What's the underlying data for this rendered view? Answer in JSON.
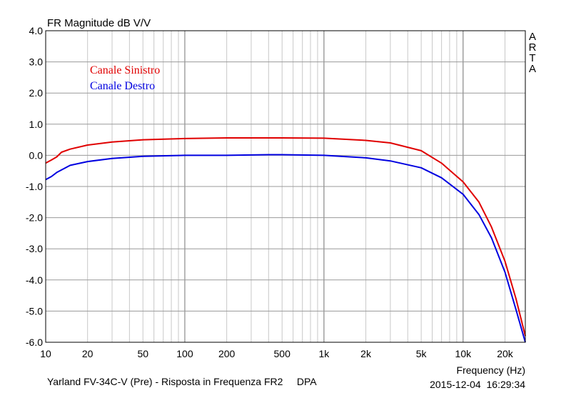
{
  "chart_data": {
    "type": "line",
    "title": "FR Magnitude dB V/V",
    "xlabel": "Frequency (Hz)",
    "x_scale": "log",
    "xlim": [
      10,
      28000
    ],
    "ylim": [
      -6,
      4
    ],
    "grid": true,
    "legend_position": "top-left",
    "brand": [
      "A",
      "R",
      "T",
      "A"
    ],
    "footer_left": "Yarland FV-34C-V (Pre) - Risposta in Frequenza FR2     DPA",
    "footer_right": "2015-12-04  16:29:34",
    "x_ticks": [
      {
        "value": 10,
        "label": "10"
      },
      {
        "value": 20,
        "label": "20"
      },
      {
        "value": 50,
        "label": "50"
      },
      {
        "value": 100,
        "label": "100"
      },
      {
        "value": 200,
        "label": "200"
      },
      {
        "value": 500,
        "label": "500"
      },
      {
        "value": 1000,
        "label": "1k"
      },
      {
        "value": 2000,
        "label": "2k"
      },
      {
        "value": 5000,
        "label": "5k"
      },
      {
        "value": 10000,
        "label": "10k"
      },
      {
        "value": 20000,
        "label": "20k"
      }
    ],
    "y_ticks": [
      {
        "value": 4,
        "label": "4.0"
      },
      {
        "value": 3,
        "label": "3.0"
      },
      {
        "value": 2,
        "label": "2.0"
      },
      {
        "value": 1,
        "label": "1.0"
      },
      {
        "value": 0,
        "label": "0.0"
      },
      {
        "value": -1,
        "label": "-1.0"
      },
      {
        "value": -2,
        "label": "-2.0"
      },
      {
        "value": -3,
        "label": "-3.0"
      },
      {
        "value": -4,
        "label": "-4.0"
      },
      {
        "value": -5,
        "label": "-5.0"
      },
      {
        "value": -6,
        "label": "-6.0"
      }
    ],
    "series": [
      {
        "name": "Canale Sinistro",
        "color": "#e00000",
        "x": [
          10,
          11,
          12,
          13,
          15,
          20,
          30,
          50,
          100,
          200,
          500,
          1000,
          2000,
          3000,
          5000,
          7000,
          10000,
          13000,
          16000,
          20000,
          24000,
          28000
        ],
        "y": [
          -0.25,
          -0.15,
          -0.05,
          0.1,
          0.2,
          0.33,
          0.43,
          0.5,
          0.54,
          0.56,
          0.56,
          0.55,
          0.48,
          0.4,
          0.15,
          -0.25,
          -0.85,
          -1.5,
          -2.3,
          -3.4,
          -4.6,
          -5.8
        ]
      },
      {
        "name": "Canale Destro",
        "color": "#0000e0",
        "x": [
          10,
          11,
          12,
          15,
          20,
          30,
          50,
          100,
          200,
          400,
          500,
          1000,
          2000,
          3000,
          5000,
          7000,
          10000,
          13000,
          16000,
          20000,
          24000,
          28000
        ],
        "y": [
          -0.78,
          -0.68,
          -0.55,
          -0.32,
          -0.2,
          -0.1,
          -0.03,
          0.0,
          0.0,
          0.02,
          0.02,
          0.0,
          -0.08,
          -0.18,
          -0.4,
          -0.72,
          -1.25,
          -1.9,
          -2.65,
          -3.75,
          -4.95,
          -6.0
        ]
      }
    ]
  }
}
